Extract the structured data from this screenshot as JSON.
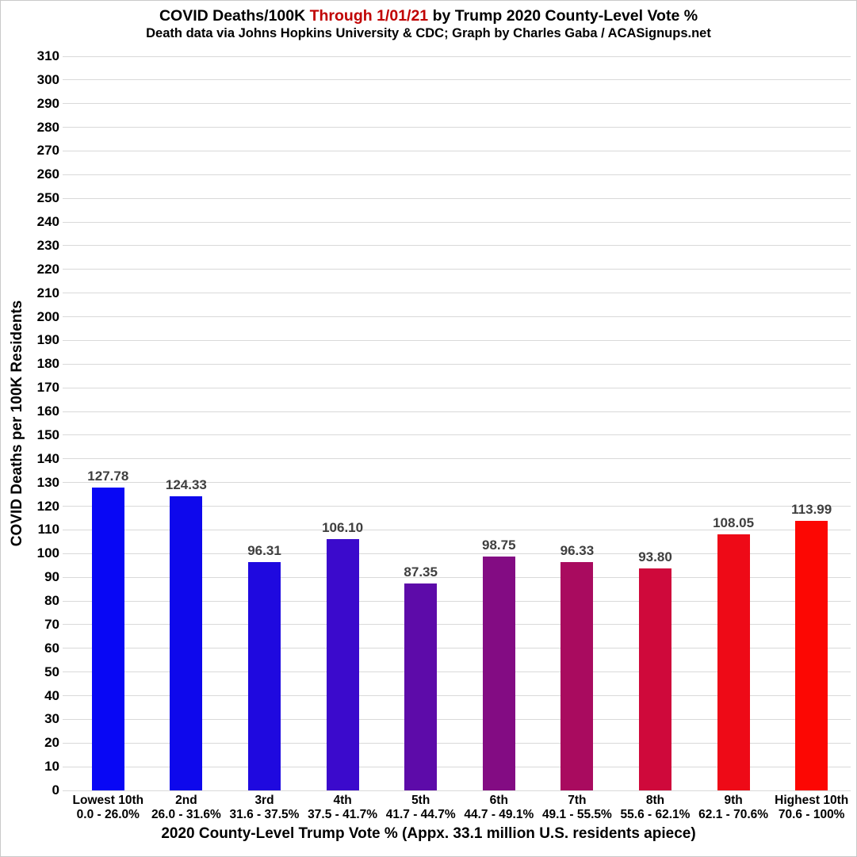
{
  "title": {
    "part1": "COVID Deaths/100K ",
    "highlight": "Through 1/01/21",
    "part2": " by Trump 2020 County-Level Vote %"
  },
  "subtitle": "Death data via Johns Hopkins University & CDC; Graph by Charles Gaba / ACASignups.net",
  "colors": {
    "title_highlight": "#C00000",
    "gridline": "#D9D9D9",
    "value_label": "#3F3F3F",
    "axis_text": "#000000",
    "background": "#FFFFFF",
    "border": "#C9C9C9"
  },
  "chart_data": {
    "type": "bar",
    "title": "COVID Deaths/100K Through 1/01/21 by Trump 2020 County-Level Vote %",
    "subtitle": "Death data via Johns Hopkins University & CDC; Graph by Charles Gaba / ACASignups.net",
    "xlabel": "2020 County-Level Trump Vote % (Appx. 33.1 million U.S. residents apiece)",
    "ylabel": "COVID Deaths per 100K Residents",
    "ylim": [
      0,
      310
    ],
    "ytick_step": 10,
    "yticks": [
      0,
      10,
      20,
      30,
      40,
      50,
      60,
      70,
      80,
      90,
      100,
      110,
      120,
      130,
      140,
      150,
      160,
      170,
      180,
      190,
      200,
      210,
      220,
      230,
      240,
      250,
      260,
      270,
      280,
      290,
      300,
      310
    ],
    "grid": true,
    "legend": false,
    "categories": [
      "Lowest 10th",
      "2nd",
      "3rd",
      "4th",
      "5th",
      "6th",
      "7th",
      "8th",
      "9th",
      "Highest 10th"
    ],
    "category_ranges": [
      "0.0 - 26.0%",
      "26.0 - 31.6%",
      "31.6 - 37.5%",
      "37.5 - 41.7%",
      "41.7 - 44.7%",
      "44.7 - 49.1%",
      "49.1 - 55.5%",
      "55.6 - 62.1%",
      "62.1 - 70.6%",
      "70.6 - 100%"
    ],
    "values": [
      127.78,
      124.33,
      96.31,
      106.1,
      87.35,
      98.75,
      96.33,
      93.8,
      108.05,
      113.99
    ],
    "value_labels": [
      "127.78",
      "124.33",
      "96.31",
      "106.10",
      "87.35",
      "98.75",
      "96.33",
      "93.80",
      "108.05",
      "113.99"
    ],
    "bar_colors": [
      "#0807F5",
      "#0E08EC",
      "#1F09DF",
      "#3B0ACC",
      "#5D0BA9",
      "#830C83",
      "#A90B5F",
      "#CF093B",
      "#EE0A17",
      "#FC0703"
    ]
  }
}
